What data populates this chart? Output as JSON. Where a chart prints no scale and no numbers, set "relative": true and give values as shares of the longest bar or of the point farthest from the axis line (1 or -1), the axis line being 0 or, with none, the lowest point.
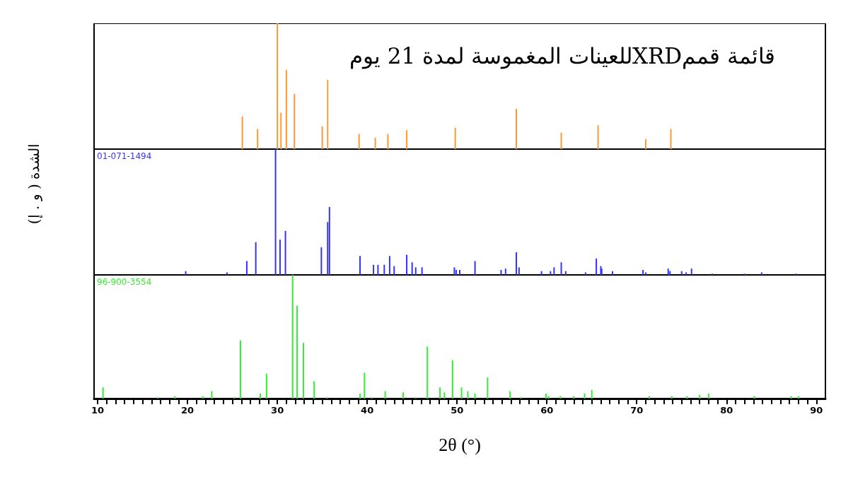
{
  "chart_data": [
    {
      "type": "bar",
      "relative": true,
      "title": "قائمة قممXRDللعينات المغموسة لمدة 21 يوم",
      "xlim": [
        9.6,
        91.0
      ],
      "tick_labels": false,
      "series": [
        {
          "color": "#ff9933",
          "x": [
            26.1,
            27.8,
            30.0,
            30.4,
            31.0,
            31.9,
            35.0,
            35.6,
            39.1,
            40.9,
            42.3,
            44.4,
            49.8,
            56.6,
            61.6,
            65.7,
            71.0,
            73.8
          ],
          "values": [
            0.26,
            0.16,
            1.0,
            0.29,
            0.63,
            0.44,
            0.18,
            0.55,
            0.12,
            0.09,
            0.12,
            0.15,
            0.17,
            0.32,
            0.13,
            0.19,
            0.08,
            0.16
          ]
        }
      ]
    },
    {
      "type": "bar",
      "relative": true,
      "ylabel": "الشدة ( و . إ)",
      "xlim": [
        9.6,
        91.0
      ],
      "tick_labels": false,
      "series": [
        {
          "name": "01-071-1494",
          "color": "#3333ff",
          "x": [
            19.8,
            24.4,
            26.6,
            27.6,
            29.8,
            30.3,
            30.9,
            34.9,
            35.6,
            35.8,
            39.2,
            40.7,
            41.2,
            41.9,
            42.5,
            43.0,
            44.4,
            45.0,
            45.4,
            46.1,
            49.7,
            49.9,
            50.3,
            52.0,
            54.9,
            55.4,
            56.6,
            56.9,
            59.4,
            60.4,
            60.8,
            61.6,
            62.1,
            64.3,
            65.5,
            66.0,
            66.1,
            67.3,
            70.7,
            71.0,
            73.5,
            73.7,
            75.0,
            75.5,
            76.1,
            78.4,
            82.0,
            83.9,
            87.7
          ],
          "values": [
            0.03,
            0.02,
            0.11,
            0.26,
            1.0,
            0.28,
            0.35,
            0.22,
            0.42,
            0.54,
            0.15,
            0.08,
            0.08,
            0.08,
            0.15,
            0.07,
            0.16,
            0.1,
            0.06,
            0.06,
            0.06,
            0.04,
            0.04,
            0.11,
            0.04,
            0.05,
            0.18,
            0.06,
            0.03,
            0.03,
            0.06,
            0.1,
            0.03,
            0.02,
            0.13,
            0.07,
            0.05,
            0.03,
            0.04,
            0.02,
            0.05,
            0.03,
            0.03,
            0.02,
            0.05,
            0.01,
            0.01,
            0.02,
            0.01
          ]
        }
      ]
    },
    {
      "type": "bar",
      "relative": true,
      "xlabel": "2θ (°)",
      "xlim": [
        9.6,
        91.0
      ],
      "tick_labels": "x",
      "xticks": [
        10,
        {
          "value": 11,
          "label": null
        },
        {
          "value": 12,
          "label": null
        },
        {
          "value": 13,
          "label": null
        },
        {
          "value": 14,
          "label": null
        },
        {
          "value": 15,
          "label": null
        },
        {
          "value": 16,
          "label": null
        },
        {
          "value": 17,
          "label": null
        },
        {
          "value": 18,
          "label": null
        },
        {
          "value": 19,
          "label": null
        },
        20,
        {
          "value": 21,
          "label": null
        },
        {
          "value": 22,
          "label": null
        },
        {
          "value": 23,
          "label": null
        },
        {
          "value": 24,
          "label": null
        },
        {
          "value": 25,
          "label": null
        },
        {
          "value": 26,
          "label": null
        },
        {
          "value": 27,
          "label": null
        },
        {
          "value": 28,
          "label": null
        },
        {
          "value": 29,
          "label": null
        },
        30,
        {
          "value": 31,
          "label": null
        },
        {
          "value": 32,
          "label": null
        },
        {
          "value": 33,
          "label": null
        },
        {
          "value": 34,
          "label": null
        },
        {
          "value": 35,
          "label": null
        },
        {
          "value": 36,
          "label": null
        },
        {
          "value": 37,
          "label": null
        },
        {
          "value": 38,
          "label": null
        },
        {
          "value": 39,
          "label": null
        },
        40,
        {
          "value": 41,
          "label": null
        },
        {
          "value": 42,
          "label": null
        },
        {
          "value": 43,
          "label": null
        },
        {
          "value": 44,
          "label": null
        },
        {
          "value": 45,
          "label": null
        },
        {
          "value": 46,
          "label": null
        },
        {
          "value": 47,
          "label": null
        },
        {
          "value": 48,
          "label": null
        },
        {
          "value": 49,
          "label": null
        },
        50,
        {
          "value": 51,
          "label": null
        },
        {
          "value": 52,
          "label": null
        },
        {
          "value": 53,
          "label": null
        },
        {
          "value": 54,
          "label": null
        },
        {
          "value": 55,
          "label": null
        },
        {
          "value": 56,
          "label": null
        },
        {
          "value": 57,
          "label": null
        },
        {
          "value": 58,
          "label": null
        },
        {
          "value": 59,
          "label": null
        },
        60,
        {
          "value": 61,
          "label": null
        },
        {
          "value": 62,
          "label": null
        },
        {
          "value": 63,
          "label": null
        },
        {
          "value": 64,
          "label": null
        },
        {
          "value": 65,
          "label": null
        },
        {
          "value": 66,
          "label": null
        },
        {
          "value": 67,
          "label": null
        },
        {
          "value": 68,
          "label": null
        },
        {
          "value": 69,
          "label": null
        },
        70,
        {
          "value": 71,
          "label": null
        },
        {
          "value": 72,
          "label": null
        },
        {
          "value": 73,
          "label": null
        },
        {
          "value": 74,
          "label": null
        },
        {
          "value": 75,
          "label": null
        },
        {
          "value": 76,
          "label": null
        },
        {
          "value": 77,
          "label": null
        },
        {
          "value": 78,
          "label": null
        },
        {
          "value": 79,
          "label": null
        },
        80,
        {
          "value": 81,
          "label": null
        },
        {
          "value": 82,
          "label": null
        },
        {
          "value": 83,
          "label": null
        },
        {
          "value": 84,
          "label": null
        },
        {
          "value": 85,
          "label": null
        },
        {
          "value": 86,
          "label": null
        },
        {
          "value": 87,
          "label": null
        },
        {
          "value": 88,
          "label": null
        },
        {
          "value": 89,
          "label": null
        },
        90
      ],
      "series": [
        {
          "name": "96-900-3554",
          "color": "#33ee33",
          "x": [
            10.6,
            16.7,
            18.6,
            21.7,
            22.7,
            25.2,
            25.9,
            28.1,
            28.8,
            31.7,
            32.2,
            32.9,
            34.1,
            35.5,
            39.2,
            39.7,
            40.5,
            42.0,
            44.0,
            45.4,
            46.7,
            48.1,
            48.6,
            49.5,
            50.5,
            51.2,
            52.0,
            53.4,
            55.9,
            57.1,
            59.9,
            60.2,
            61.5,
            63.0,
            64.2,
            65.0,
            71.4,
            73.9,
            75.6,
            77.0,
            78.0,
            83.1,
            87.2,
            88.0
          ],
          "values": [
            0.09,
            0.01,
            0.02,
            0.02,
            0.06,
            0.01,
            0.47,
            0.04,
            0.2,
            1.0,
            0.75,
            0.45,
            0.14,
            0.01,
            0.04,
            0.21,
            0.01,
            0.06,
            0.05,
            0.01,
            0.42,
            0.09,
            0.05,
            0.31,
            0.09,
            0.06,
            0.04,
            0.17,
            0.06,
            0.01,
            0.04,
            0.02,
            0.02,
            0.02,
            0.04,
            0.07,
            0.02,
            0.02,
            0.02,
            0.03,
            0.04,
            0.02,
            0.02,
            0.02
          ]
        }
      ]
    }
  ]
}
